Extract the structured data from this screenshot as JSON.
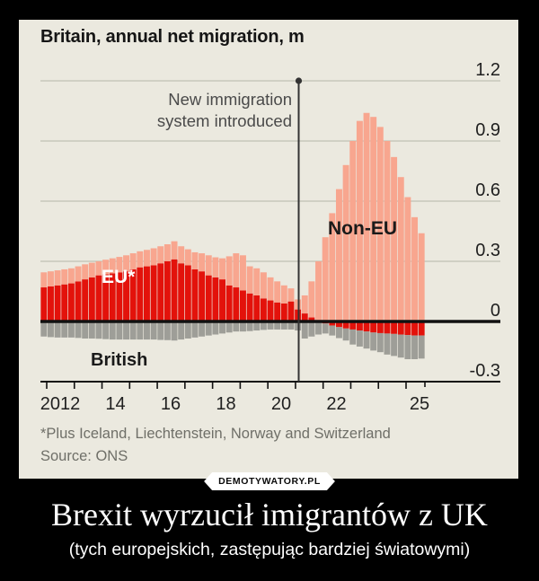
{
  "meme": {
    "watermark": "DEMOTYWATORY.PL",
    "title": "Brexit wyrzucił imigrantów z UK",
    "subtitle": "(tych europejskich, zastępując bardziej światowymi)"
  },
  "chart": {
    "title": "Britain, annual net migration, m",
    "annotation": {
      "line1": "New immigration",
      "line2": "system introduced"
    },
    "series_labels": {
      "eu": "EU*",
      "non_eu": "Non-EU",
      "british": "British"
    },
    "footnote": "*Plus Iceland, Liechtenstein, Norway and Switzerland",
    "source": "Source: ONS"
  },
  "chart_data": {
    "type": "bar",
    "stacked": true,
    "title": "Britain, annual net migration, m",
    "unit": "millions of people, rolling annual value plotted quarterly",
    "x_range_years": [
      2011.8,
      2025.8
    ],
    "ylim": [
      -0.3,
      1.2
    ],
    "grid": true,
    "y_tick_labels": [
      "1.2",
      "0.9",
      "0.6",
      "0.3",
      "0",
      "-0.3"
    ],
    "y_ticks": [
      1.2,
      0.9,
      0.6,
      0.3,
      0,
      -0.3
    ],
    "x_tick_labels": [
      "2012",
      "14",
      "16",
      "18",
      "20",
      "22",
      "25"
    ],
    "annotation": {
      "text": "New immigration system introduced",
      "x_year": 2021
    },
    "legend": [
      "EU*",
      "Non-EU",
      "British"
    ],
    "colors": {
      "eu": "#e3120b",
      "non_eu": "#f8a68f",
      "british": "#9e9e98"
    },
    "series": [
      {
        "name": "EU*",
        "values": [
          0.17,
          0.175,
          0.18,
          0.185,
          0.19,
          0.2,
          0.21,
          0.22,
          0.23,
          0.235,
          0.24,
          0.245,
          0.25,
          0.26,
          0.27,
          0.275,
          0.28,
          0.29,
          0.3,
          0.31,
          0.29,
          0.28,
          0.26,
          0.25,
          0.23,
          0.22,
          0.21,
          0.18,
          0.17,
          0.155,
          0.14,
          0.13,
          0.115,
          0.105,
          0.095,
          0.09,
          0.1,
          0.06,
          0.04,
          0.02,
          0.005,
          -0.01,
          -0.02,
          -0.028,
          -0.035,
          -0.04,
          -0.045,
          -0.05,
          -0.055,
          -0.058,
          -0.06,
          -0.062,
          -0.065,
          -0.068,
          -0.07,
          -0.07
        ]
      },
      {
        "name": "Non-EU",
        "values": [
          0.075,
          0.075,
          0.075,
          0.075,
          0.075,
          0.075,
          0.075,
          0.073,
          0.07,
          0.073,
          0.075,
          0.077,
          0.08,
          0.08,
          0.08,
          0.082,
          0.085,
          0.085,
          0.085,
          0.09,
          0.085,
          0.08,
          0.085,
          0.09,
          0.1,
          0.1,
          0.105,
          0.145,
          0.17,
          0.175,
          0.135,
          0.135,
          0.13,
          0.115,
          0.105,
          0.09,
          0.065,
          0.05,
          0.09,
          0.18,
          0.295,
          0.42,
          0.54,
          0.66,
          0.78,
          0.9,
          1.0,
          1.04,
          1.02,
          0.97,
          0.9,
          0.82,
          0.72,
          0.62,
          0.52,
          0.44
        ]
      },
      {
        "name": "British",
        "values": [
          -0.075,
          -0.078,
          -0.08,
          -0.08,
          -0.08,
          -0.082,
          -0.085,
          -0.085,
          -0.086,
          -0.088,
          -0.09,
          -0.09,
          -0.09,
          -0.09,
          -0.09,
          -0.09,
          -0.09,
          -0.092,
          -0.093,
          -0.095,
          -0.09,
          -0.085,
          -0.08,
          -0.075,
          -0.07,
          -0.065,
          -0.06,
          -0.055,
          -0.05,
          -0.05,
          -0.048,
          -0.045,
          -0.042,
          -0.04,
          -0.04,
          -0.04,
          -0.04,
          -0.045,
          -0.085,
          -0.075,
          -0.065,
          -0.05,
          -0.05,
          -0.055,
          -0.06,
          -0.075,
          -0.08,
          -0.085,
          -0.09,
          -0.095,
          -0.105,
          -0.11,
          -0.115,
          -0.12,
          -0.118,
          -0.115
        ]
      }
    ],
    "footnote": "*Plus Iceland, Liechtenstein, Norway and Switzerland",
    "source": "Source: ONS",
    "legend_position": "labels drawn on chart areas"
  }
}
